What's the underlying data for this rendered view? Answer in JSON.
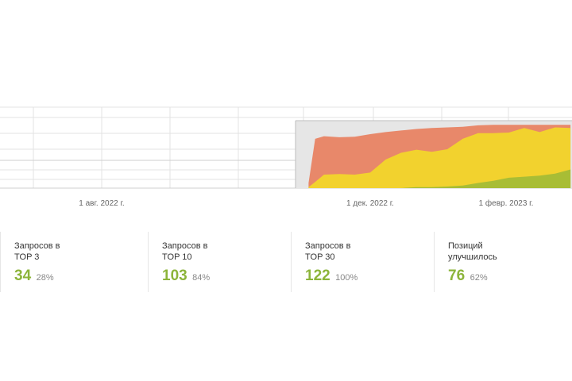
{
  "chart_data": {
    "type": "area",
    "x_ticks": [
      "1 авг. 2022 г.",
      "1 дек. 2022 г.",
      "1 февр. 2023 г."
    ],
    "x": [
      "2022-11-03",
      "2022-11-06",
      "2022-11-10",
      "2022-11-17",
      "2022-11-24",
      "2022-12-01",
      "2022-12-08",
      "2022-12-15",
      "2022-12-22",
      "2022-12-29",
      "2023-01-05",
      "2023-01-12",
      "2023-01-19",
      "2023-01-26",
      "2023-02-02",
      "2023-02-09",
      "2023-02-16",
      "2023-02-23",
      "2023-03-02"
    ],
    "series": [
      {
        "color": "#e8886a",
        "values": [
          10,
          95,
          100,
          98,
          99,
          104,
          108,
          111,
          114,
          116,
          117,
          118,
          121,
          122,
          122,
          122,
          122,
          122,
          122
        ]
      },
      {
        "color": "#f2d22e",
        "values": [
          2,
          12,
          26,
          27,
          26,
          30,
          55,
          68,
          74,
          70,
          75,
          95,
          106,
          106,
          107,
          116,
          108,
          117,
          116
        ]
      },
      {
        "color": "#a8bd35",
        "values": [
          0,
          0,
          0,
          0,
          0,
          0,
          0,
          0,
          2,
          2,
          3,
          5,
          10,
          14,
          20,
          22,
          24,
          28,
          36
        ]
      }
    ]
  },
  "stats": [
    {
      "label_line1": "Запросов в",
      "label_line2": "TOP 3",
      "value": "34",
      "percent": "28%"
    },
    {
      "label_line1": "Запросов в",
      "label_line2": "TOP 10",
      "value": "103",
      "percent": "84%"
    },
    {
      "label_line1": "Запросов в",
      "label_line2": "TOP 30",
      "value": "122",
      "percent": "100%"
    },
    {
      "label_line1": "Позиций",
      "label_line2": "улучшилось",
      "value": "76",
      "percent": "62%"
    }
  ]
}
